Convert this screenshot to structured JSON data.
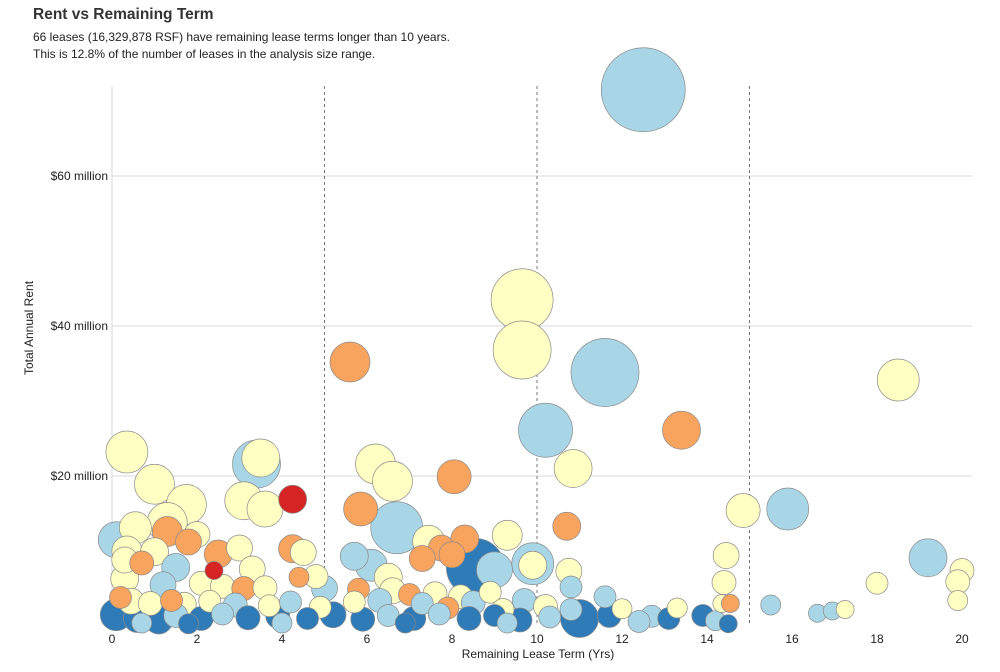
{
  "header": {
    "title": "Rent vs Remaining Term",
    "subtitle_line1": "66 leases (16,329,878 RSF) have remaining lease terms longer than 10 years.",
    "subtitle_line2": "This is 12.8% of the number of leases in the analysis size range."
  },
  "colors": {
    "dark_blue": "#2e7bb8",
    "light_blue": "#a9d6e7",
    "cream": "#ffffc4",
    "orange": "#f8a35e",
    "red": "#d62323",
    "grid": "#d9d9d9",
    "divider": "#777777"
  },
  "chart_data": {
    "type": "scatter",
    "bubble": true,
    "xlabel": "Remaining Lease Term (Yrs)",
    "ylabel": "Total Annual Rent",
    "xlim": [
      0,
      20
    ],
    "ylim": [
      0,
      72
    ],
    "x_ticks": [
      0,
      2,
      4,
      6,
      8,
      10,
      12,
      14,
      16,
      18,
      20
    ],
    "y_ticks": [
      {
        "value": 20,
        "label": "$20 million"
      },
      {
        "value": 40,
        "label": "$40 million"
      },
      {
        "value": 60,
        "label": "$60 million"
      }
    ],
    "dividers_x": [
      5,
      10,
      15
    ],
    "grid": true,
    "points": [
      {
        "x": 12.5,
        "y": 71.5,
        "r": 42,
        "c": "light_blue"
      },
      {
        "x": 9.65,
        "y": 43.5,
        "r": 31,
        "c": "cream"
      },
      {
        "x": 9.65,
        "y": 36.8,
        "r": 29,
        "c": "cream"
      },
      {
        "x": 11.6,
        "y": 33.8,
        "r": 34,
        "c": "light_blue"
      },
      {
        "x": 18.5,
        "y": 32.8,
        "r": 21,
        "c": "cream"
      },
      {
        "x": 5.6,
        "y": 35.2,
        "r": 20,
        "c": "orange"
      },
      {
        "x": 10.2,
        "y": 26.1,
        "r": 27,
        "c": "light_blue"
      },
      {
        "x": 13.4,
        "y": 26.1,
        "r": 19,
        "c": "orange"
      },
      {
        "x": 0.35,
        "y": 23.2,
        "r": 21,
        "c": "cream"
      },
      {
        "x": 3.4,
        "y": 21.6,
        "r": 24,
        "c": "light_blue"
      },
      {
        "x": 3.5,
        "y": 22.4,
        "r": 19,
        "c": "cream"
      },
      {
        "x": 6.2,
        "y": 21.6,
        "r": 20,
        "c": "cream"
      },
      {
        "x": 10.85,
        "y": 21.0,
        "r": 19,
        "c": "cream"
      },
      {
        "x": 8.05,
        "y": 19.9,
        "r": 17,
        "c": "orange"
      },
      {
        "x": 6.6,
        "y": 19.3,
        "r": 20,
        "c": "cream"
      },
      {
        "x": 1.0,
        "y": 18.9,
        "r": 20,
        "c": "cream"
      },
      {
        "x": 4.25,
        "y": 16.9,
        "r": 14,
        "c": "red"
      },
      {
        "x": 3.1,
        "y": 16.7,
        "r": 19,
        "c": "cream"
      },
      {
        "x": 1.75,
        "y": 16.2,
        "r": 20,
        "c": "cream"
      },
      {
        "x": 3.6,
        "y": 15.6,
        "r": 18,
        "c": "cream"
      },
      {
        "x": 5.85,
        "y": 15.6,
        "r": 17,
        "c": "orange"
      },
      {
        "x": 15.9,
        "y": 15.6,
        "r": 21,
        "c": "light_blue"
      },
      {
        "x": 14.85,
        "y": 15.4,
        "r": 17,
        "c": "cream"
      },
      {
        "x": 6.7,
        "y": 13.1,
        "r": 26,
        "c": "light_blue"
      },
      {
        "x": 10.7,
        "y": 13.3,
        "r": 14,
        "c": "orange"
      },
      {
        "x": 1.3,
        "y": 13.8,
        "r": 20,
        "c": "cream"
      },
      {
        "x": 0.55,
        "y": 13.1,
        "r": 16,
        "c": "cream"
      },
      {
        "x": 1.3,
        "y": 12.6,
        "r": 15,
        "c": "orange"
      },
      {
        "x": 0.1,
        "y": 11.5,
        "r": 18,
        "c": "light_blue"
      },
      {
        "x": 2.0,
        "y": 12.2,
        "r": 13,
        "c": "cream"
      },
      {
        "x": 3.0,
        "y": 10.4,
        "r": 13,
        "c": "cream"
      },
      {
        "x": 7.45,
        "y": 11.3,
        "r": 16,
        "c": "cream"
      },
      {
        "x": 8.3,
        "y": 11.6,
        "r": 14,
        "c": "orange"
      },
      {
        "x": 9.3,
        "y": 12.1,
        "r": 15,
        "c": "cream"
      },
      {
        "x": 7.75,
        "y": 10.4,
        "r": 13,
        "c": "orange"
      },
      {
        "x": 1.8,
        "y": 11.2,
        "r": 13,
        "c": "orange"
      },
      {
        "x": 0.35,
        "y": 10.0,
        "r": 15,
        "c": "cream"
      },
      {
        "x": 1.0,
        "y": 9.9,
        "r": 14,
        "c": "cream"
      },
      {
        "x": 2.5,
        "y": 9.6,
        "r": 14,
        "c": "orange"
      },
      {
        "x": 4.25,
        "y": 10.3,
        "r": 14,
        "c": "orange"
      },
      {
        "x": 4.5,
        "y": 9.8,
        "r": 13,
        "c": "cream"
      },
      {
        "x": 5.7,
        "y": 9.3,
        "r": 14,
        "c": "light_blue"
      },
      {
        "x": 8.55,
        "y": 7.8,
        "r": 29,
        "c": "dark_blue"
      },
      {
        "x": 9.0,
        "y": 7.5,
        "r": 18,
        "c": "light_blue"
      },
      {
        "x": 9.9,
        "y": 8.3,
        "r": 21,
        "c": "light_blue"
      },
      {
        "x": 9.9,
        "y": 8.1,
        "r": 14,
        "c": "cream"
      },
      {
        "x": 10.75,
        "y": 7.3,
        "r": 13,
        "c": "cream"
      },
      {
        "x": 8.0,
        "y": 9.5,
        "r": 13,
        "c": "orange"
      },
      {
        "x": 7.3,
        "y": 9.0,
        "r": 13,
        "c": "orange"
      },
      {
        "x": 14.45,
        "y": 9.4,
        "r": 13,
        "c": "cream"
      },
      {
        "x": 19.2,
        "y": 9.1,
        "r": 19,
        "c": "light_blue"
      },
      {
        "x": 20.0,
        "y": 7.4,
        "r": 12,
        "c": "cream"
      },
      {
        "x": 19.9,
        "y": 5.9,
        "r": 12,
        "c": "cream"
      },
      {
        "x": 19.9,
        "y": 3.4,
        "r": 10,
        "c": "cream"
      },
      {
        "x": 18.0,
        "y": 5.7,
        "r": 11,
        "c": "cream"
      },
      {
        "x": 14.4,
        "y": 5.8,
        "r": 12,
        "c": "cream"
      },
      {
        "x": 14.35,
        "y": 3.0,
        "r": 9,
        "c": "cream"
      },
      {
        "x": 14.55,
        "y": 3.0,
        "r": 9,
        "c": "orange"
      },
      {
        "x": 15.5,
        "y": 2.8,
        "r": 10,
        "c": "light_blue"
      },
      {
        "x": 16.6,
        "y": 1.7,
        "r": 9,
        "c": "light_blue"
      },
      {
        "x": 16.95,
        "y": 2.0,
        "r": 9,
        "c": "light_blue"
      },
      {
        "x": 17.25,
        "y": 2.2,
        "r": 9,
        "c": "cream"
      },
      {
        "x": 14.5,
        "y": 0.3,
        "r": 9,
        "c": "dark_blue"
      },
      {
        "x": 13.9,
        "y": 1.4,
        "r": 11,
        "c": "dark_blue"
      },
      {
        "x": 13.3,
        "y": 2.4,
        "r": 10,
        "c": "cream"
      },
      {
        "x": 12.7,
        "y": 1.3,
        "r": 11,
        "c": "light_blue"
      },
      {
        "x": 12.0,
        "y": 2.3,
        "r": 10,
        "c": "cream"
      },
      {
        "x": 11.0,
        "y": 1.0,
        "r": 19,
        "c": "dark_blue"
      },
      {
        "x": 11.6,
        "y": 3.9,
        "r": 11,
        "c": "light_blue"
      },
      {
        "x": 10.8,
        "y": 5.2,
        "r": 11,
        "c": "light_blue"
      },
      {
        "x": 6.1,
        "y": 8.1,
        "r": 16,
        "c": "light_blue"
      },
      {
        "x": 6.5,
        "y": 6.5,
        "r": 14,
        "c": "cream"
      },
      {
        "x": 0.3,
        "y": 8.8,
        "r": 13,
        "c": "cream"
      },
      {
        "x": 0.7,
        "y": 8.4,
        "r": 12,
        "c": "orange"
      },
      {
        "x": 1.5,
        "y": 7.8,
        "r": 14,
        "c": "light_blue"
      },
      {
        "x": 2.4,
        "y": 7.4,
        "r": 9,
        "c": "red"
      },
      {
        "x": 3.3,
        "y": 7.6,
        "r": 13,
        "c": "cream"
      },
      {
        "x": 4.4,
        "y": 6.5,
        "r": 10,
        "c": "orange"
      },
      {
        "x": 4.8,
        "y": 6.6,
        "r": 12,
        "c": "cream"
      },
      {
        "x": 0.3,
        "y": 6.3,
        "r": 14,
        "c": "cream"
      },
      {
        "x": 1.2,
        "y": 5.5,
        "r": 13,
        "c": "light_blue"
      },
      {
        "x": 2.1,
        "y": 5.7,
        "r": 12,
        "c": "cream"
      },
      {
        "x": 2.6,
        "y": 5.3,
        "r": 12,
        "c": "cream"
      },
      {
        "x": 3.1,
        "y": 5.0,
        "r": 12,
        "c": "orange"
      },
      {
        "x": 3.6,
        "y": 5.1,
        "r": 12,
        "c": "cream"
      },
      {
        "x": 5.0,
        "y": 5.0,
        "r": 13,
        "c": "light_blue"
      },
      {
        "x": 5.8,
        "y": 4.9,
        "r": 11,
        "c": "orange"
      },
      {
        "x": 6.6,
        "y": 4.7,
        "r": 13,
        "c": "cream"
      },
      {
        "x": 7.0,
        "y": 4.2,
        "r": 11,
        "c": "orange"
      },
      {
        "x": 7.6,
        "y": 4.3,
        "r": 12,
        "c": "cream"
      },
      {
        "x": 8.2,
        "y": 3.9,
        "r": 12,
        "c": "cream"
      },
      {
        "x": 8.9,
        "y": 4.5,
        "r": 11,
        "c": "cream"
      },
      {
        "x": 9.7,
        "y": 3.4,
        "r": 12,
        "c": "light_blue"
      },
      {
        "x": 10.2,
        "y": 2.6,
        "r": 12,
        "c": "cream"
      },
      {
        "x": 0.2,
        "y": 3.8,
        "r": 11,
        "c": "orange"
      },
      {
        "x": 0.45,
        "y": 3.3,
        "r": 13,
        "c": "cream"
      },
      {
        "x": 0.9,
        "y": 3.0,
        "r": 12,
        "c": "cream"
      },
      {
        "x": 1.4,
        "y": 3.4,
        "r": 11,
        "c": "orange"
      },
      {
        "x": 1.7,
        "y": 2.9,
        "r": 12,
        "c": "cream"
      },
      {
        "x": 2.3,
        "y": 3.3,
        "r": 11,
        "c": "cream"
      },
      {
        "x": 2.9,
        "y": 2.8,
        "r": 12,
        "c": "light_blue"
      },
      {
        "x": 3.7,
        "y": 2.7,
        "r": 11,
        "c": "cream"
      },
      {
        "x": 4.2,
        "y": 3.2,
        "r": 11,
        "c": "light_blue"
      },
      {
        "x": 4.9,
        "y": 2.5,
        "r": 11,
        "c": "cream"
      },
      {
        "x": 5.7,
        "y": 3.2,
        "r": 11,
        "c": "cream"
      },
      {
        "x": 6.3,
        "y": 3.4,
        "r": 12,
        "c": "light_blue"
      },
      {
        "x": 7.3,
        "y": 3.0,
        "r": 11,
        "c": "light_blue"
      },
      {
        "x": 7.9,
        "y": 2.4,
        "r": 11,
        "c": "orange"
      },
      {
        "x": 8.5,
        "y": 3.1,
        "r": 12,
        "c": "light_blue"
      },
      {
        "x": 9.2,
        "y": 2.2,
        "r": 11,
        "c": "cream"
      },
      {
        "x": 10.8,
        "y": 2.2,
        "r": 11,
        "c": "light_blue"
      },
      {
        "x": 0.1,
        "y": 1.5,
        "r": 16,
        "c": "dark_blue"
      },
      {
        "x": 0.6,
        "y": 1.0,
        "r": 14,
        "c": "dark_blue"
      },
      {
        "x": 1.1,
        "y": 0.8,
        "r": 14,
        "c": "dark_blue"
      },
      {
        "x": 1.5,
        "y": 1.4,
        "r": 12,
        "c": "light_blue"
      },
      {
        "x": 2.1,
        "y": 1.0,
        "r": 12,
        "c": "dark_blue"
      },
      {
        "x": 2.6,
        "y": 1.6,
        "r": 11,
        "c": "light_blue"
      },
      {
        "x": 3.2,
        "y": 1.1,
        "r": 12,
        "c": "dark_blue"
      },
      {
        "x": 3.9,
        "y": 1.3,
        "r": 12,
        "c": "dark_blue"
      },
      {
        "x": 4.6,
        "y": 1.0,
        "r": 11,
        "c": "dark_blue"
      },
      {
        "x": 5.2,
        "y": 1.5,
        "r": 13,
        "c": "dark_blue"
      },
      {
        "x": 5.9,
        "y": 0.9,
        "r": 12,
        "c": "dark_blue"
      },
      {
        "x": 6.5,
        "y": 1.4,
        "r": 11,
        "c": "light_blue"
      },
      {
        "x": 7.1,
        "y": 1.0,
        "r": 12,
        "c": "dark_blue"
      },
      {
        "x": 7.7,
        "y": 1.6,
        "r": 11,
        "c": "light_blue"
      },
      {
        "x": 8.4,
        "y": 1.0,
        "r": 12,
        "c": "dark_blue"
      },
      {
        "x": 9.0,
        "y": 1.4,
        "r": 11,
        "c": "dark_blue"
      },
      {
        "x": 9.6,
        "y": 0.8,
        "r": 12,
        "c": "dark_blue"
      },
      {
        "x": 10.3,
        "y": 1.2,
        "r": 11,
        "c": "light_blue"
      },
      {
        "x": 11.7,
        "y": 1.4,
        "r": 12,
        "c": "dark_blue"
      },
      {
        "x": 12.4,
        "y": 0.6,
        "r": 11,
        "c": "light_blue"
      },
      {
        "x": 13.1,
        "y": 1.0,
        "r": 11,
        "c": "dark_blue"
      },
      {
        "x": 14.2,
        "y": 0.7,
        "r": 10,
        "c": "light_blue"
      },
      {
        "x": 0.7,
        "y": 0.4,
        "r": 10,
        "c": "light_blue"
      },
      {
        "x": 1.8,
        "y": 0.3,
        "r": 10,
        "c": "dark_blue"
      },
      {
        "x": 4.0,
        "y": 0.4,
        "r": 10,
        "c": "light_blue"
      },
      {
        "x": 6.9,
        "y": 0.4,
        "r": 10,
        "c": "dark_blue"
      },
      {
        "x": 9.3,
        "y": 0.4,
        "r": 10,
        "c": "light_blue"
      }
    ]
  }
}
